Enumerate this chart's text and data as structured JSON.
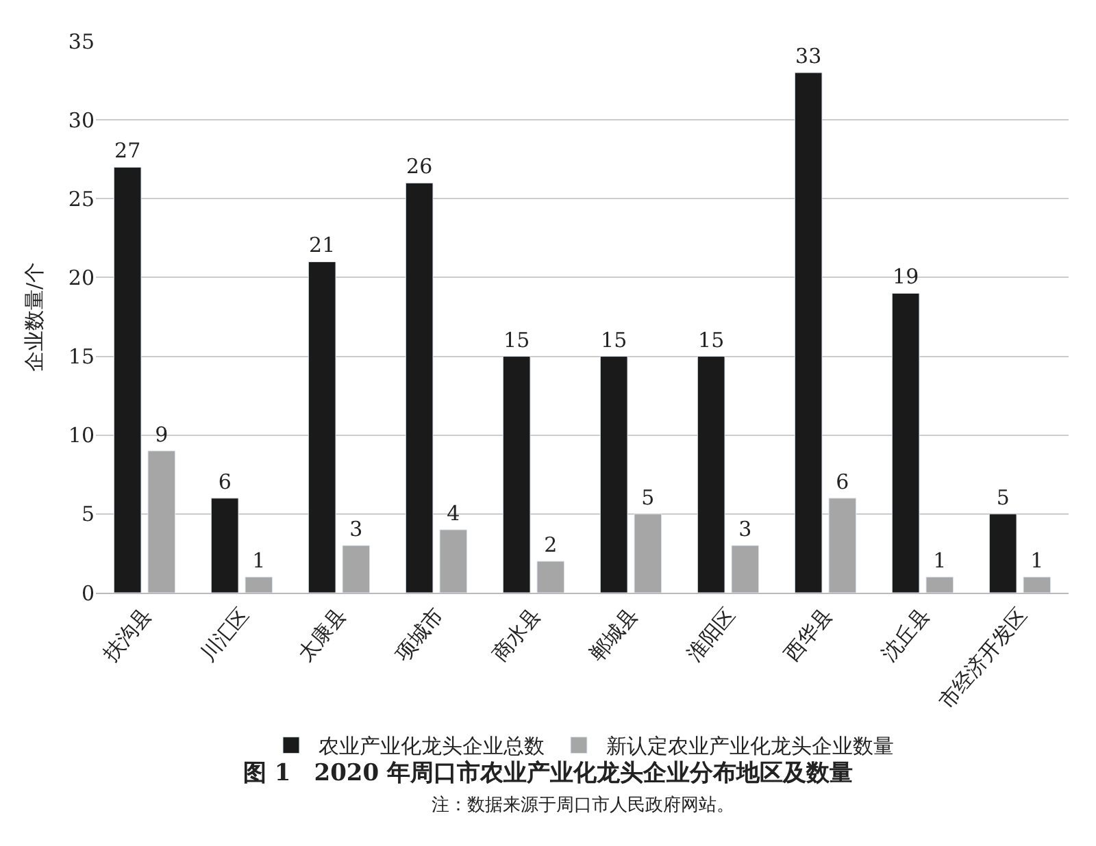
{
  "chart_data": {
    "type": "bar",
    "title": "图 1　2020 年周口市农业产业化龙头企业分布地区及数量",
    "ylabel": "企业数量/个",
    "categories": [
      "扶沟县",
      "川汇区",
      "太康县",
      "项城市",
      "商水县",
      "郸城县",
      "淮阳区",
      "西华县",
      "沈丘县",
      "市经济开发区"
    ],
    "series": [
      {
        "name": "农业产业化龙头企业总数",
        "color": "#1a1a1a",
        "values": [
          27,
          6,
          21,
          26,
          15,
          15,
          15,
          33,
          19,
          5
        ]
      },
      {
        "name": "新认定农业产业化龙头企业数量",
        "color": "#a6a6a6",
        "values": [
          9,
          1,
          3,
          4,
          2,
          5,
          3,
          6,
          1,
          1
        ]
      }
    ],
    "ylim": [
      0,
      35
    ],
    "yticks": [
      0,
      5,
      10,
      15,
      20,
      25,
      30,
      35
    ],
    "grid": "y",
    "legend": "bottom",
    "data_labels": true,
    "annotations": [
      "注：数据来源于周口市人民政府网站。"
    ]
  }
}
